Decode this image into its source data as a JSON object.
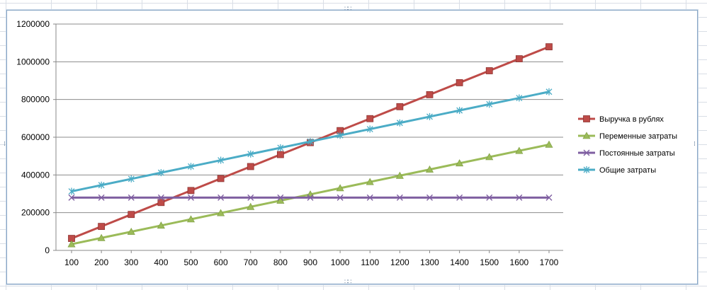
{
  "chart_data": {
    "type": "line",
    "title": "",
    "xlabel": "",
    "ylabel": "",
    "x": [
      100,
      200,
      300,
      400,
      500,
      600,
      700,
      800,
      900,
      1000,
      1100,
      1200,
      1300,
      1400,
      1500,
      1600,
      1700
    ],
    "ylim": [
      0,
      1200000
    ],
    "y_ticks": [
      0,
      200000,
      400000,
      600000,
      800000,
      1000000,
      1200000
    ],
    "y_tick_labels": [
      "0",
      "200000",
      "400000",
      "600000",
      "800000",
      "1000000",
      "1200000"
    ],
    "x_tick_labels": [
      "100",
      "200",
      "300",
      "400",
      "500",
      "600",
      "700",
      "800",
      "900",
      "1000",
      "1100",
      "1200",
      "1300",
      "1400",
      "1500",
      "1600",
      "1700"
    ],
    "grid": "horizontal",
    "legend_position": "right",
    "series": [
      {
        "name": "Выручка в рублях",
        "color": "#be4b48",
        "marker": "square",
        "values": [
          63500,
          127000,
          190500,
          254000,
          317500,
          381000,
          444500,
          508000,
          571500,
          635000,
          698500,
          762000,
          825500,
          889000,
          952500,
          1016000,
          1079500
        ]
      },
      {
        "name": "Переменные затраты",
        "color": "#9bbb59",
        "marker": "triangle",
        "values": [
          33000,
          66000,
          99000,
          132000,
          165000,
          198000,
          231000,
          264000,
          297000,
          330000,
          363000,
          396000,
          429000,
          462000,
          495000,
          528000,
          561000
        ]
      },
      {
        "name": "Постоянные затраты",
        "color": "#7f5fa1",
        "marker": "x",
        "values": [
          280000,
          280000,
          280000,
          280000,
          280000,
          280000,
          280000,
          280000,
          280000,
          280000,
          280000,
          280000,
          280000,
          280000,
          280000,
          280000,
          280000
        ]
      },
      {
        "name": "Общие затраты",
        "color": "#4bacc6",
        "marker": "star",
        "values": [
          313000,
          346000,
          379000,
          412000,
          445000,
          478000,
          511000,
          544000,
          577000,
          610000,
          643000,
          676000,
          709000,
          742000,
          775000,
          808000,
          841000
        ]
      }
    ]
  }
}
